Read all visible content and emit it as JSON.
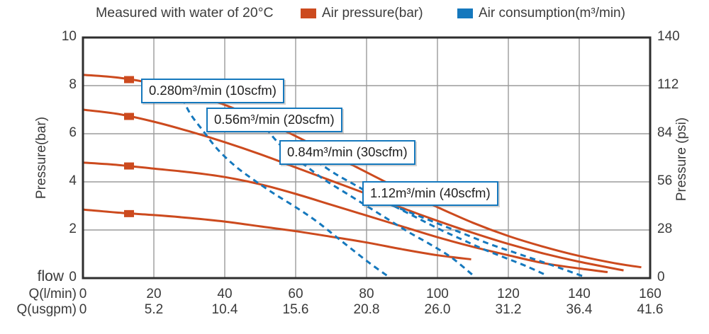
{
  "header": {
    "title": "Measured with water of 20°C",
    "legend": [
      {
        "name": "air-pressure",
        "label": "Air pressure(bar)",
        "color": "#cc4a1e"
      },
      {
        "name": "air-consumption",
        "label": "Air consumption(m³/min)",
        "color": "#1578bd"
      }
    ]
  },
  "chart_data": {
    "type": "line",
    "title": "Measured with water of 20°C",
    "grid": true,
    "colors": {
      "pressure": "#cc4a1e",
      "consumption": "#1578bd",
      "grid": "#9b9b9b",
      "frame": "#2e2e2e"
    },
    "x_axis": {
      "row1_label": "Q(l/min)",
      "row1_ticks": [
        0,
        20,
        40,
        60,
        80,
        100,
        120,
        140,
        160
      ],
      "row2_label": "Q(usgpm)",
      "row2_ticks": [
        "0",
        "5.2",
        "10.4",
        "15.6",
        "20.8",
        "26.0",
        "31.2",
        "36.4",
        "41.6"
      ],
      "range": [
        0,
        160
      ]
    },
    "y_axis_left": {
      "label": "Pressure(bar)",
      "flow_label": "flow",
      "ticks": [
        10,
        8,
        6,
        4,
        2,
        0
      ],
      "range": [
        0,
        10
      ]
    },
    "y_axis_right": {
      "label": "Pressure (psi)",
      "ticks": [
        140,
        112,
        84,
        56,
        28,
        0
      ],
      "range": [
        0,
        140
      ]
    },
    "series": [
      {
        "name": "pressure-8.4bar",
        "group": "air_pressure",
        "style": "solid",
        "color": "#cc4a1e",
        "marker": [
          13,
          8.25
        ],
        "points": [
          [
            0,
            8.45
          ],
          [
            10,
            8.33
          ],
          [
            20,
            8.08
          ],
          [
            30,
            7.7
          ],
          [
            40,
            7.2
          ],
          [
            50,
            6.6
          ],
          [
            60,
            5.9
          ],
          [
            70,
            5.15
          ],
          [
            80,
            4.4
          ],
          [
            90,
            3.65
          ],
          [
            100,
            2.95
          ],
          [
            110,
            2.3
          ],
          [
            120,
            1.75
          ],
          [
            130,
            1.3
          ],
          [
            140,
            0.92
          ],
          [
            150,
            0.62
          ],
          [
            157.5,
            0.45
          ]
        ]
      },
      {
        "name": "pressure-7bar",
        "group": "air_pressure",
        "style": "solid",
        "color": "#cc4a1e",
        "marker": [
          13,
          6.72
        ],
        "points": [
          [
            0,
            7.0
          ],
          [
            10,
            6.82
          ],
          [
            20,
            6.5
          ],
          [
            30,
            6.1
          ],
          [
            40,
            5.65
          ],
          [
            50,
            5.15
          ],
          [
            60,
            4.6
          ],
          [
            70,
            4.05
          ],
          [
            80,
            3.5
          ],
          [
            90,
            2.92
          ],
          [
            100,
            2.38
          ],
          [
            110,
            1.88
          ],
          [
            120,
            1.42
          ],
          [
            130,
            1.02
          ],
          [
            140,
            0.68
          ],
          [
            152.5,
            0.32
          ]
        ]
      },
      {
        "name": "pressure-4.8bar",
        "group": "air_pressure",
        "style": "solid",
        "color": "#cc4a1e",
        "marker": [
          13,
          4.66
        ],
        "points": [
          [
            0,
            4.8
          ],
          [
            10,
            4.7
          ],
          [
            20,
            4.55
          ],
          [
            30,
            4.4
          ],
          [
            40,
            4.2
          ],
          [
            50,
            3.9
          ],
          [
            60,
            3.5
          ],
          [
            70,
            3.05
          ],
          [
            80,
            2.6
          ],
          [
            90,
            2.15
          ],
          [
            100,
            1.7
          ],
          [
            110,
            1.3
          ],
          [
            120,
            0.95
          ],
          [
            130,
            0.62
          ],
          [
            140,
            0.4
          ],
          [
            148,
            0.25
          ]
        ]
      },
      {
        "name": "pressure-2.8bar",
        "group": "air_pressure",
        "style": "solid",
        "color": "#cc4a1e",
        "marker": [
          13,
          2.68
        ],
        "points": [
          [
            0,
            2.85
          ],
          [
            10,
            2.72
          ],
          [
            20,
            2.62
          ],
          [
            30,
            2.5
          ],
          [
            40,
            2.35
          ],
          [
            50,
            2.15
          ],
          [
            60,
            1.95
          ],
          [
            70,
            1.72
          ],
          [
            80,
            1.48
          ],
          [
            90,
            1.2
          ],
          [
            100,
            0.95
          ],
          [
            109.5,
            0.78
          ]
        ]
      },
      {
        "name": "consumption-10scfm",
        "group": "air_consumption",
        "style": "dashed",
        "color": "#1578bd",
        "points": [
          [
            27,
            7.85
          ],
          [
            30,
            6.9
          ],
          [
            34,
            6.1
          ],
          [
            38,
            5.35
          ],
          [
            43,
            4.65
          ],
          [
            48,
            4.1
          ],
          [
            54,
            3.5
          ],
          [
            60,
            2.95
          ],
          [
            66,
            2.35
          ],
          [
            72,
            1.65
          ],
          [
            78,
            0.95
          ],
          [
            82,
            0.5
          ],
          [
            86,
            0.08
          ]
        ]
      },
      {
        "name": "consumption-20scfm",
        "group": "air_consumption",
        "style": "dashed",
        "color": "#1578bd",
        "points": [
          [
            50,
            6.55
          ],
          [
            54,
            5.8
          ],
          [
            58,
            5.2
          ],
          [
            63,
            4.65
          ],
          [
            68,
            4.1
          ],
          [
            74,
            3.55
          ],
          [
            80,
            3.0
          ],
          [
            86,
            2.45
          ],
          [
            92,
            1.9
          ],
          [
            98,
            1.4
          ],
          [
            104,
            0.85
          ],
          [
            110,
            0.12
          ]
        ]
      },
      {
        "name": "consumption-30scfm",
        "group": "air_consumption",
        "style": "dashed",
        "color": "#1578bd",
        "points": [
          [
            66,
            4.85
          ],
          [
            71,
            4.35
          ],
          [
            77,
            3.85
          ],
          [
            83,
            3.35
          ],
          [
            89,
            2.9
          ],
          [
            95,
            2.45
          ],
          [
            101,
            2.0
          ],
          [
            107,
            1.6
          ],
          [
            113,
            1.2
          ],
          [
            119,
            0.85
          ],
          [
            125,
            0.5
          ],
          [
            131,
            0.1
          ]
        ]
      },
      {
        "name": "consumption-40scfm",
        "group": "air_consumption",
        "style": "dashed",
        "color": "#1578bd",
        "points": [
          [
            79,
            3.5
          ],
          [
            85,
            3.15
          ],
          [
            91,
            2.8
          ],
          [
            97,
            2.45
          ],
          [
            103,
            2.1
          ],
          [
            109,
            1.75
          ],
          [
            115,
            1.4
          ],
          [
            121,
            1.1
          ],
          [
            127,
            0.8
          ],
          [
            133,
            0.5
          ],
          [
            141,
            0.08
          ]
        ]
      }
    ],
    "annotations": [
      {
        "text": "0.280m³/min (10scfm)",
        "series": "consumption-10scfm"
      },
      {
        "text": "0.56m³/min (20scfm)",
        "series": "consumption-20scfm"
      },
      {
        "text": "0.84m³/min (30scfm)",
        "series": "consumption-30scfm"
      },
      {
        "text": "1.12m³/min (40scfm)",
        "series": "consumption-40scfm"
      }
    ]
  }
}
